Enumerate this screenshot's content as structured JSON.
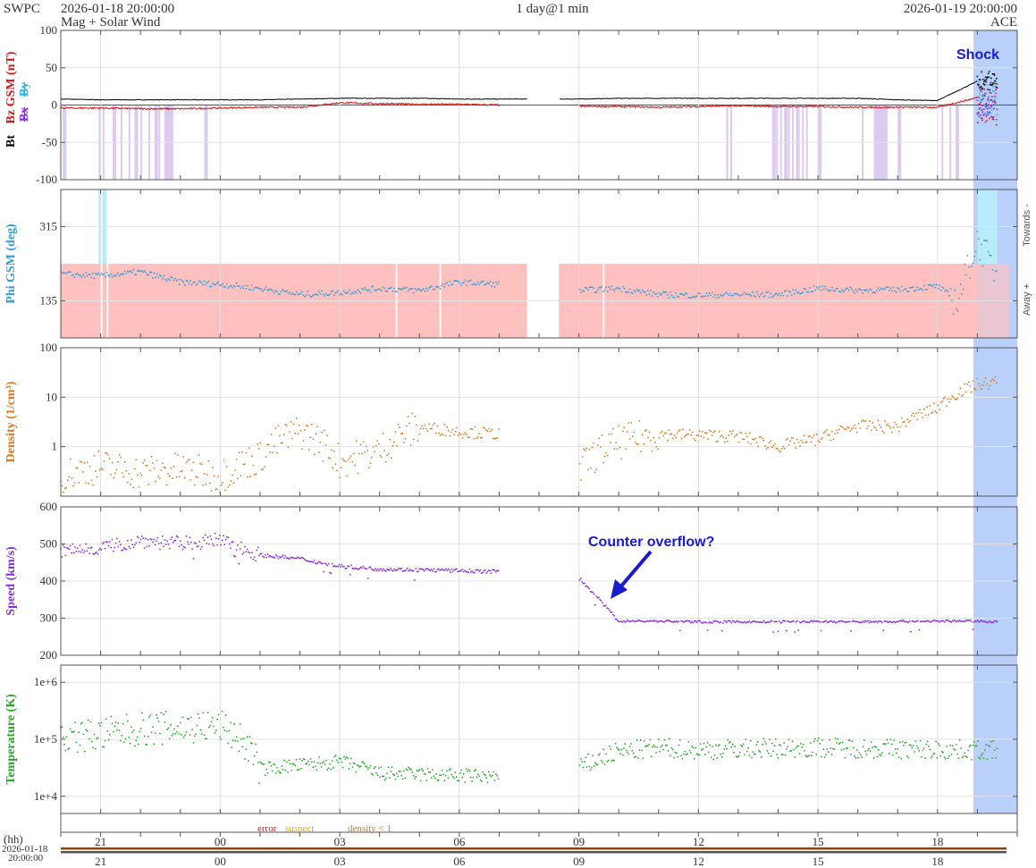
{
  "header": {
    "org": "SWPC",
    "start": "2026-01-18 20:00:00",
    "subtitle": "Mag + Solar Wind",
    "span": "1 day@1 min",
    "end": "2026-01-19 20:00:00",
    "spacecraft": "ACE"
  },
  "colors": {
    "bt": "#000000",
    "bz": "#dd1111",
    "bx": "#8a2be2",
    "by": "#22b8e8",
    "phi": "#2a9fd8",
    "density": "#e07818",
    "speed": "#8a2be2",
    "temperature": "#22aa22",
    "shock_shade": "#b8d0fa",
    "towards_shade": "#ffc0c0",
    "away_shade": "#b8ecfa",
    "bz_south_shade": "#dccaf0",
    "annotation": "#1a1ad0",
    "error": "#dd1111",
    "suspect": "#e8b000",
    "density_flag": "#e07818"
  },
  "annotations": {
    "shock": "Shock",
    "overflow": "Counter overflow?"
  },
  "phi_side": {
    "towards": "Towards -",
    "away": "Away +"
  },
  "flags_legend": {
    "error": "error",
    "suspect": "suspect",
    "density": "density < 1"
  },
  "time_axis": {
    "hh_label": "(hh)",
    "date_label": "2026-01-18",
    "time_label": "20:00:00",
    "hour_labels": [
      "21",
      "00",
      "03",
      "06",
      "09",
      "12",
      "15",
      "18"
    ]
  },
  "chart_data": [
    {
      "type": "line",
      "panel": "mag",
      "ylabel": [
        "Bt",
        "Bz GSM (nT)",
        "Bx",
        "By"
      ],
      "ylim": [
        -100,
        100
      ],
      "yticks": [
        "100",
        "50",
        "0",
        "-50",
        "-100"
      ],
      "x_hours_since_start": [
        0,
        1,
        2,
        3,
        4,
        5,
        6,
        7,
        8,
        9,
        10,
        11,
        12,
        13,
        14,
        15,
        16,
        17,
        18,
        19,
        20,
        21,
        22,
        23,
        23.5
      ],
      "series": [
        {
          "name": "Bt",
          "values": [
            8,
            7,
            7,
            7,
            7,
            7,
            8,
            9,
            9,
            9,
            8,
            8,
            8,
            8,
            9,
            9,
            9,
            9,
            9,
            9,
            9,
            7,
            6,
            32,
            25
          ]
        },
        {
          "name": "Bz GSM (nT)",
          "values": [
            -4,
            -4,
            -5,
            -5,
            -4,
            -3,
            -3,
            3,
            2,
            1,
            1,
            0,
            null,
            -2,
            -2,
            -3,
            -2,
            -1,
            -2,
            -2,
            -3,
            -3,
            -3,
            10,
            -20
          ]
        }
      ],
      "gap_hours": [
        11.7,
        12.5
      ]
    },
    {
      "type": "scatter",
      "panel": "phi",
      "ylabel": "Phi GSM (deg)",
      "ylim": [
        45,
        405
      ],
      "yticks": [
        "315",
        "135"
      ],
      "x_hours_since_start": [
        0,
        1,
        2,
        3,
        4,
        5,
        6,
        7,
        8,
        9,
        10,
        11,
        12,
        13,
        14,
        15,
        16,
        17,
        18,
        19,
        20,
        21,
        22,
        22.5,
        23,
        23.5
      ],
      "values": [
        200,
        195,
        205,
        180,
        175,
        165,
        150,
        155,
        165,
        160,
        180,
        175,
        null,
        160,
        165,
        150,
        148,
        150,
        150,
        165,
        160,
        162,
        170,
        135,
        280,
        200
      ],
      "gap_hours": [
        11.7,
        12.5
      ]
    },
    {
      "type": "scatter",
      "panel": "density",
      "ylabel": "Density (1/cm³)",
      "yscale": "log",
      "ylim": [
        0.1,
        100
      ],
      "yticks": [
        "100",
        "10",
        "1"
      ],
      "x_hours_since_start": [
        0,
        1,
        2,
        3,
        4,
        5,
        6,
        7,
        8,
        9,
        10,
        11,
        12,
        13,
        14,
        15,
        16,
        17,
        18,
        19,
        20,
        21,
        22,
        23,
        23.5
      ],
      "values": [
        0.25,
        0.4,
        0.3,
        0.35,
        0.25,
        0.6,
        2.0,
        0.5,
        0.8,
        2.5,
        2.0,
        1.8,
        null,
        0.3,
        1.2,
        1.8,
        1.7,
        1.6,
        1.0,
        1.4,
        2.6,
        2.5,
        6,
        18,
        20
      ],
      "gap_hours": [
        11.7,
        12.5
      ]
    },
    {
      "type": "scatter",
      "panel": "speed",
      "ylabel": "Speed (km/s)",
      "ylim": [
        200,
        600
      ],
      "yticks": [
        "600",
        "500",
        "400",
        "300",
        "200"
      ],
      "x_hours_since_start": [
        0,
        1,
        2,
        3,
        4,
        5,
        6,
        7,
        8,
        9,
        10,
        11,
        12,
        13,
        14,
        15,
        16,
        17,
        18,
        19,
        20,
        21,
        22,
        23,
        23.5
      ],
      "values": [
        480,
        490,
        510,
        500,
        510,
        470,
        460,
        440,
        432,
        430,
        428,
        425,
        null,
        410,
        292,
        292,
        290,
        290,
        290,
        291,
        290,
        291,
        292,
        292,
        290
      ],
      "gap_hours": [
        11.7,
        12.5
      ]
    },
    {
      "type": "scatter",
      "panel": "temperature",
      "ylabel": "Temperature (K)",
      "yscale": "log",
      "ylim": [
        5000,
        2000000
      ],
      "yticks": [
        "1e+6",
        "1e+5",
        "1e+4"
      ],
      "x_hours_since_start": [
        0,
        1,
        2,
        3,
        4,
        5,
        6,
        7,
        8,
        9,
        10,
        11,
        12,
        13,
        14,
        15,
        16,
        17,
        18,
        19,
        20,
        21,
        22,
        23,
        23.5
      ],
      "values": [
        110000,
        120000,
        150000,
        160000,
        170000,
        30000,
        35000,
        40000,
        25000,
        24000,
        23000,
        22000,
        null,
        30000,
        60000,
        70000,
        65000,
        68000,
        70000,
        72000,
        70000,
        68000,
        65000,
        65000,
        62000
      ],
      "gap_hours": [
        11.7,
        12.5
      ]
    }
  ]
}
